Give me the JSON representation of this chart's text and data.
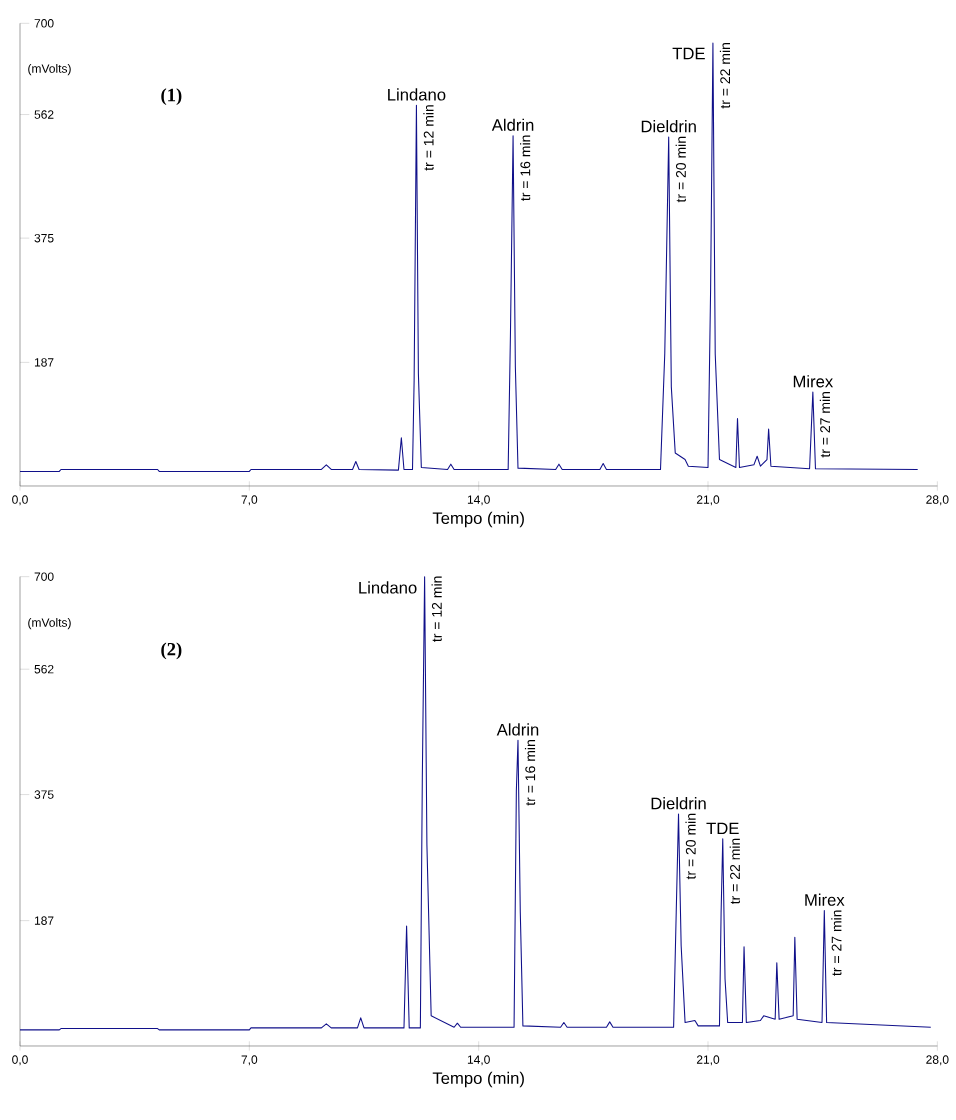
{
  "chart_data": [
    {
      "type": "line",
      "xlabel": "Tempo (min)",
      "ylabel": "(mVolts)",
      "xlim": [
        0,
        28
      ],
      "ylim": [
        0,
        700
      ],
      "xticks": [
        {
          "value": 0,
          "label": "0,0"
        },
        {
          "value": 7,
          "label": "7,0"
        },
        {
          "value": 14,
          "label": "14,0"
        },
        {
          "value": 21,
          "label": "21,0"
        },
        {
          "value": 28,
          "label": "28,0"
        }
      ],
      "yticks": [
        187,
        375,
        562,
        700
      ],
      "series": [
        {
          "color": "#10108a",
          "x": [
            0,
            1.2,
            1.25,
            4.2,
            4.25,
            7.0,
            7.05,
            9.2,
            9.35,
            9.5,
            10.15,
            10.25,
            10.35,
            11.55,
            11.64,
            11.72,
            11.98,
            12.03,
            12.1,
            12.16,
            12.25,
            13.05,
            13.15,
            13.25,
            14.9,
            14.97,
            15.05,
            15.12,
            15.2,
            16.35,
            16.45,
            16.55,
            17.7,
            17.8,
            17.9,
            19.55,
            19.68,
            19.8,
            19.88,
            20.0,
            20.3,
            20.4,
            21.0,
            21.08,
            21.15,
            21.22,
            21.35,
            21.85,
            21.9,
            21.96,
            22.4,
            22.5,
            22.6,
            22.8,
            22.85,
            22.92,
            24.1,
            24.2,
            24.28,
            27.4
          ],
          "values": [
            22,
            22,
            25,
            25,
            22,
            22,
            25,
            25,
            32,
            25,
            25,
            37,
            25,
            24,
            73,
            25,
            25,
            160,
            576,
            170,
            28,
            25,
            33,
            25,
            25,
            230,
            530,
            180,
            27,
            25,
            33,
            25,
            25,
            34,
            25,
            25,
            200,
            528,
            150,
            50,
            40,
            30,
            28,
            300,
            670,
            200,
            40,
            28,
            102,
            28,
            32,
            45,
            30,
            40,
            86,
            30,
            26,
            142,
            26,
            25
          ]
        }
      ],
      "annotations": [
        "(1)",
        {
          "text": "Lindano",
          "x": 12.1,
          "y": 576
        },
        {
          "text": "tr = 12 min",
          "x": 12.1,
          "y": 576
        },
        {
          "text": "Aldrin",
          "x": 15.05,
          "y": 530
        },
        {
          "text": "tr = 16 min",
          "x": 15.05,
          "y": 530
        },
        {
          "text": "Dieldrin",
          "x": 19.8,
          "y": 528
        },
        {
          "text": "tr = 20 min",
          "x": 19.8,
          "y": 528
        },
        {
          "text": "TDE",
          "x": 21.15,
          "y": 670
        },
        {
          "text": "tr = 22 min",
          "x": 21.15,
          "y": 670
        },
        {
          "text": "Mirex",
          "x": 24.2,
          "y": 142
        },
        {
          "text": "tr = 27 min",
          "x": 24.2,
          "y": 142
        }
      ]
    },
    {
      "type": "line",
      "xlabel": "Tempo (min)",
      "ylabel": "(mVolts)",
      "xlim": [
        0,
        28
      ],
      "ylim": [
        0,
        700
      ],
      "xticks": [
        {
          "value": 0,
          "label": "0,0"
        },
        {
          "value": 7,
          "label": "7,0"
        },
        {
          "value": 14,
          "label": "14,0"
        },
        {
          "value": 21,
          "label": "21,0"
        },
        {
          "value": 28,
          "label": "28,0"
        }
      ],
      "yticks": [
        187,
        375,
        562,
        700
      ],
      "series": [
        {
          "color": "#10108a",
          "x": [
            0,
            1.2,
            1.25,
            4.2,
            4.25,
            7.0,
            7.05,
            9.2,
            9.35,
            9.5,
            10.3,
            10.4,
            10.5,
            11.72,
            11.8,
            11.88,
            12.22,
            12.28,
            12.35,
            12.42,
            12.55,
            13.25,
            13.35,
            13.45,
            15.08,
            15.15,
            15.2,
            15.27,
            15.35,
            16.5,
            16.6,
            16.7,
            17.9,
            18.0,
            18.1,
            19.95,
            20.03,
            20.1,
            20.18,
            20.3,
            20.6,
            20.7,
            21.35,
            21.4,
            21.45,
            21.52,
            21.6,
            22.05,
            22.1,
            22.17,
            22.6,
            22.7,
            23.05,
            23.1,
            23.17,
            23.6,
            23.65,
            23.72,
            24.48,
            24.55,
            24.62,
            27.8
          ],
          "values": [
            24,
            24,
            26,
            26,
            24,
            24,
            27,
            27,
            33,
            27,
            27,
            42,
            27,
            27,
            179,
            27,
            27,
            400,
            700,
            300,
            45,
            28,
            34,
            28,
            28,
            380,
            456,
            200,
            30,
            28,
            35,
            28,
            28,
            36,
            28,
            28,
            200,
            346,
            150,
            35,
            38,
            30,
            30,
            200,
            309,
            100,
            35,
            35,
            148,
            35,
            38,
            45,
            40,
            124,
            40,
            45,
            162,
            40,
            35,
            202,
            35,
            28
          ]
        }
      ],
      "annotations": [
        "(2)",
        {
          "text": "Lindano",
          "x": 12.35,
          "y": 700
        },
        {
          "text": "tr = 12 min",
          "x": 12.35,
          "y": 700
        },
        {
          "text": "Aldrin",
          "x": 15.2,
          "y": 456
        },
        {
          "text": "tr = 16 min",
          "x": 15.2,
          "y": 456
        },
        {
          "text": "Dieldrin",
          "x": 20.1,
          "y": 346
        },
        {
          "text": "tr = 20 min",
          "x": 20.1,
          "y": 346
        },
        {
          "text": "TDE",
          "x": 21.45,
          "y": 309
        },
        {
          "text": "tr = 22 min",
          "x": 21.45,
          "y": 309
        },
        {
          "text": "Mirex",
          "x": 24.55,
          "y": 202
        },
        {
          "text": "tr = 27 min",
          "x": 24.55,
          "y": 202
        }
      ]
    }
  ]
}
